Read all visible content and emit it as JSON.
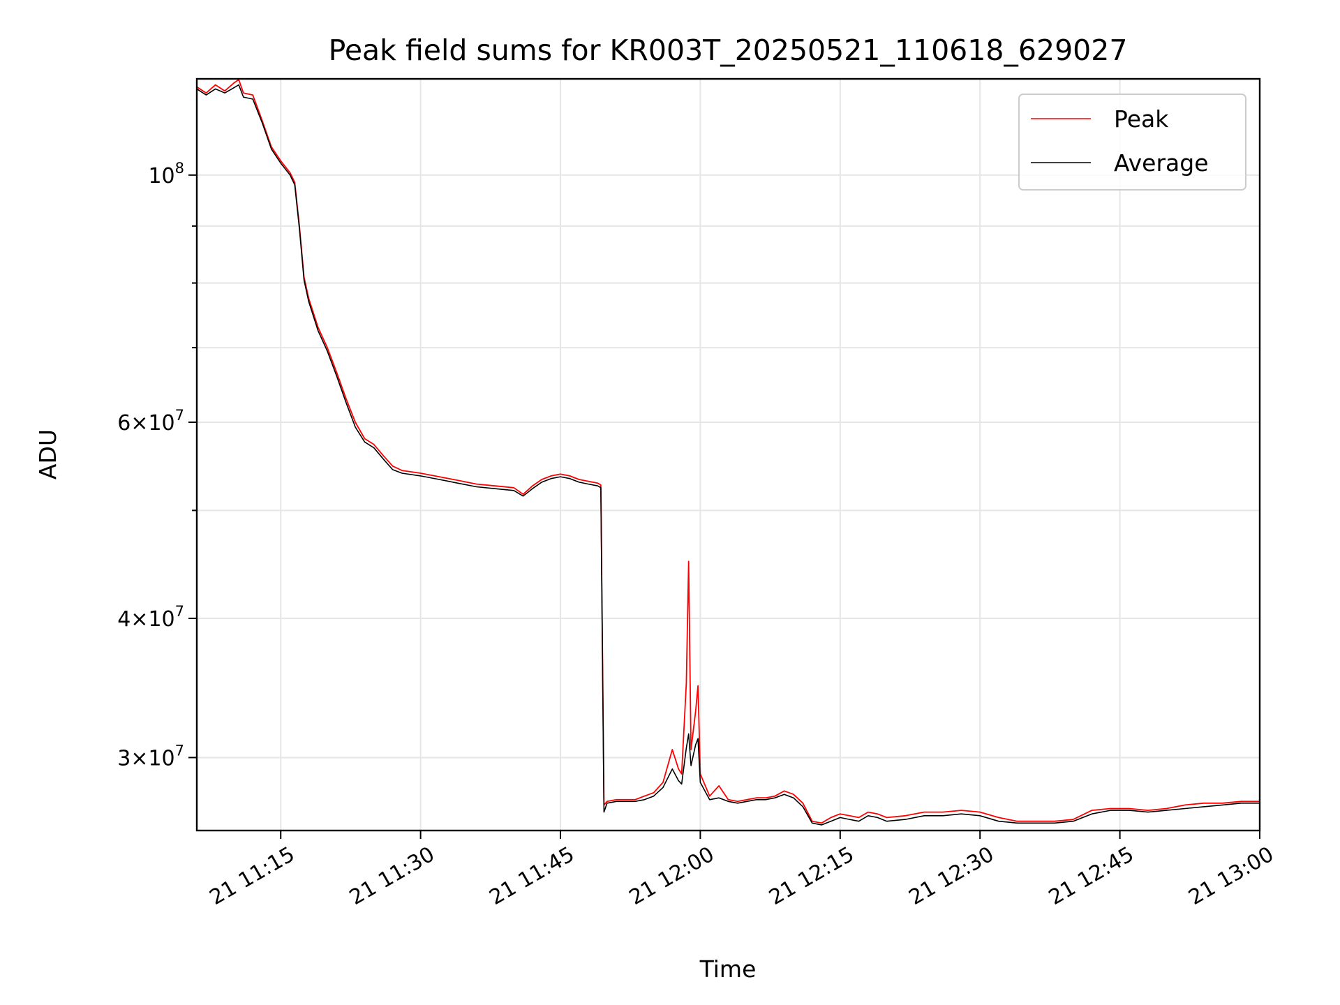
{
  "chart_data": {
    "type": "line",
    "title": "Peak field sums for KR003T_20250521_110618_629027",
    "xlabel": "Time",
    "ylabel": "ADU",
    "yscale": "log",
    "grid": true,
    "legend_position": "top-right",
    "xlim": [
      "2025-05-21 11:06",
      "2025-05-21 13:00"
    ],
    "ylim": [
      25800000,
      122000000
    ],
    "x_ticks": [
      {
        "time": "2025-05-21 11:15",
        "label": "21 11:15"
      },
      {
        "time": "2025-05-21 11:30",
        "label": "21 11:30"
      },
      {
        "time": "2025-05-21 11:45",
        "label": "21 11:45"
      },
      {
        "time": "2025-05-21 12:00",
        "label": "21 12:00"
      },
      {
        "time": "2025-05-21 12:15",
        "label": "21 12:15"
      },
      {
        "time": "2025-05-21 12:30",
        "label": "21 12:30"
      },
      {
        "time": "2025-05-21 12:45",
        "label": "21 12:45"
      },
      {
        "time": "2025-05-21 13:00",
        "label": "21 13:00"
      }
    ],
    "y_ticks": [
      {
        "value": 30000000,
        "base": "3",
        "exp": "7"
      },
      {
        "value": 40000000,
        "base": "4",
        "exp": "7"
      },
      {
        "value": 60000000,
        "base": "6",
        "exp": "7"
      },
      {
        "value": 100000000,
        "base": "",
        "exp": "8"
      }
    ],
    "y_minor_ticks": [
      50000000,
      70000000,
      80000000,
      90000000
    ],
    "series": [
      {
        "name": "Peak",
        "color": "#ff0000",
        "points": [
          [
            "2025-05-21 11:06",
            120000000
          ],
          [
            "2025-05-21 11:07",
            118500000
          ],
          [
            "2025-05-21 11:08",
            120500000
          ],
          [
            "2025-05-21 11:09",
            119000000
          ],
          [
            "2025-05-21 11:10",
            121000000
          ],
          [
            "2025-05-21 11:10:30",
            121800000
          ],
          [
            "2025-05-21 11:11",
            118500000
          ],
          [
            "2025-05-21 11:12",
            118000000
          ],
          [
            "2025-05-21 11:13",
            112000000
          ],
          [
            "2025-05-21 11:14",
            106000000
          ],
          [
            "2025-05-21 11:15",
            103000000
          ],
          [
            "2025-05-21 11:16",
            100500000
          ],
          [
            "2025-05-21 11:16:30",
            98500000
          ],
          [
            "2025-05-21 11:17",
            90000000
          ],
          [
            "2025-05-21 11:17:30",
            81000000
          ],
          [
            "2025-05-21 11:18",
            77500000
          ],
          [
            "2025-05-21 11:19",
            73000000
          ],
          [
            "2025-05-21 11:20",
            70000000
          ],
          [
            "2025-05-21 11:21",
            66500000
          ],
          [
            "2025-05-21 11:22",
            63000000
          ],
          [
            "2025-05-21 11:23",
            60000000
          ],
          [
            "2025-05-21 11:24",
            58000000
          ],
          [
            "2025-05-21 11:25",
            57300000
          ],
          [
            "2025-05-21 11:26",
            56000000
          ],
          [
            "2025-05-21 11:27",
            54800000
          ],
          [
            "2025-05-21 11:28",
            54300000
          ],
          [
            "2025-05-21 11:30",
            54000000
          ],
          [
            "2025-05-21 11:32",
            53600000
          ],
          [
            "2025-05-21 11:34",
            53200000
          ],
          [
            "2025-05-21 11:36",
            52800000
          ],
          [
            "2025-05-21 11:38",
            52600000
          ],
          [
            "2025-05-21 11:40",
            52400000
          ],
          [
            "2025-05-21 11:41",
            51700000
          ],
          [
            "2025-05-21 11:42",
            52600000
          ],
          [
            "2025-05-21 11:43",
            53300000
          ],
          [
            "2025-05-21 11:44",
            53700000
          ],
          [
            "2025-05-21 11:45",
            53900000
          ],
          [
            "2025-05-21 11:46",
            53700000
          ],
          [
            "2025-05-21 11:47",
            53300000
          ],
          [
            "2025-05-21 11:48",
            53100000
          ],
          [
            "2025-05-21 11:49",
            52900000
          ],
          [
            "2025-05-21 11:49:20",
            52700000
          ],
          [
            "2025-05-21 11:49:40",
            27200000
          ],
          [
            "2025-05-21 11:50",
            27400000
          ],
          [
            "2025-05-21 11:51",
            27500000
          ],
          [
            "2025-05-21 11:52",
            27500000
          ],
          [
            "2025-05-21 11:53",
            27500000
          ],
          [
            "2025-05-21 11:54",
            27700000
          ],
          [
            "2025-05-21 11:55",
            27900000
          ],
          [
            "2025-05-21 11:56",
            28500000
          ],
          [
            "2025-05-21 11:57",
            30500000
          ],
          [
            "2025-05-21 11:57:40",
            29300000
          ],
          [
            "2025-05-21 11:58",
            29000000
          ],
          [
            "2025-05-21 11:58:30",
            35000000
          ],
          [
            "2025-05-21 11:58:45",
            45000000
          ],
          [
            "2025-05-21 11:59",
            30500000
          ],
          [
            "2025-05-21 11:59:30",
            33000000
          ],
          [
            "2025-05-21 11:59:45",
            34800000
          ],
          [
            "2025-05-21 12:00",
            29000000
          ],
          [
            "2025-05-21 12:01",
            27700000
          ],
          [
            "2025-05-21 12:02",
            28300000
          ],
          [
            "2025-05-21 12:03",
            27500000
          ],
          [
            "2025-05-21 12:04",
            27400000
          ],
          [
            "2025-05-21 12:05",
            27500000
          ],
          [
            "2025-05-21 12:06",
            27600000
          ],
          [
            "2025-05-21 12:07",
            27600000
          ],
          [
            "2025-05-21 12:08",
            27700000
          ],
          [
            "2025-05-21 12:09",
            28000000
          ],
          [
            "2025-05-21 12:10",
            27800000
          ],
          [
            "2025-05-21 12:11",
            27300000
          ],
          [
            "2025-05-21 12:12",
            26300000
          ],
          [
            "2025-05-21 12:13",
            26200000
          ],
          [
            "2025-05-21 12:14",
            26500000
          ],
          [
            "2025-05-21 12:15",
            26700000
          ],
          [
            "2025-05-21 12:16",
            26600000
          ],
          [
            "2025-05-21 12:17",
            26500000
          ],
          [
            "2025-05-21 12:18",
            26800000
          ],
          [
            "2025-05-21 12:19",
            26700000
          ],
          [
            "2025-05-21 12:20",
            26500000
          ],
          [
            "2025-05-21 12:22",
            26600000
          ],
          [
            "2025-05-21 12:24",
            26800000
          ],
          [
            "2025-05-21 12:26",
            26800000
          ],
          [
            "2025-05-21 12:28",
            26900000
          ],
          [
            "2025-05-21 12:30",
            26800000
          ],
          [
            "2025-05-21 12:32",
            26500000
          ],
          [
            "2025-05-21 12:34",
            26300000
          ],
          [
            "2025-05-21 12:36",
            26300000
          ],
          [
            "2025-05-21 12:38",
            26300000
          ],
          [
            "2025-05-21 12:40",
            26400000
          ],
          [
            "2025-05-21 12:42",
            26900000
          ],
          [
            "2025-05-21 12:44",
            27000000
          ],
          [
            "2025-05-21 12:46",
            27000000
          ],
          [
            "2025-05-21 12:48",
            26900000
          ],
          [
            "2025-05-21 12:50",
            27000000
          ],
          [
            "2025-05-21 12:52",
            27200000
          ],
          [
            "2025-05-21 12:54",
            27300000
          ],
          [
            "2025-05-21 12:56",
            27300000
          ],
          [
            "2025-05-21 12:58",
            27400000
          ],
          [
            "2025-05-21 13:00",
            27400000
          ]
        ]
      },
      {
        "name": "Average",
        "color": "#000000",
        "points": [
          [
            "2025-05-21 11:06",
            119500000
          ],
          [
            "2025-05-21 11:07",
            118000000
          ],
          [
            "2025-05-21 11:08",
            119500000
          ],
          [
            "2025-05-21 11:09",
            118500000
          ],
          [
            "2025-05-21 11:10",
            119800000
          ],
          [
            "2025-05-21 11:10:30",
            120500000
          ],
          [
            "2025-05-21 11:11",
            117500000
          ],
          [
            "2025-05-21 11:12",
            117000000
          ],
          [
            "2025-05-21 11:13",
            111500000
          ],
          [
            "2025-05-21 11:14",
            105500000
          ],
          [
            "2025-05-21 11:15",
            102500000
          ],
          [
            "2025-05-21 11:16",
            100000000
          ],
          [
            "2025-05-21 11:16:30",
            98000000
          ],
          [
            "2025-05-21 11:17",
            89500000
          ],
          [
            "2025-05-21 11:17:30",
            80500000
          ],
          [
            "2025-05-21 11:18",
            77000000
          ],
          [
            "2025-05-21 11:19",
            72500000
          ],
          [
            "2025-05-21 11:20",
            69500000
          ],
          [
            "2025-05-21 11:21",
            66000000
          ],
          [
            "2025-05-21 11:22",
            62500000
          ],
          [
            "2025-05-21 11:23",
            59400000
          ],
          [
            "2025-05-21 11:24",
            57600000
          ],
          [
            "2025-05-21 11:25",
            56900000
          ],
          [
            "2025-05-21 11:26",
            55600000
          ],
          [
            "2025-05-21 11:27",
            54400000
          ],
          [
            "2025-05-21 11:28",
            54000000
          ],
          [
            "2025-05-21 11:30",
            53700000
          ],
          [
            "2025-05-21 11:32",
            53300000
          ],
          [
            "2025-05-21 11:34",
            52900000
          ],
          [
            "2025-05-21 11:36",
            52500000
          ],
          [
            "2025-05-21 11:38",
            52300000
          ],
          [
            "2025-05-21 11:40",
            52100000
          ],
          [
            "2025-05-21 11:41",
            51500000
          ],
          [
            "2025-05-21 11:42",
            52300000
          ],
          [
            "2025-05-21 11:43",
            53000000
          ],
          [
            "2025-05-21 11:44",
            53400000
          ],
          [
            "2025-05-21 11:45",
            53600000
          ],
          [
            "2025-05-21 11:46",
            53400000
          ],
          [
            "2025-05-21 11:47",
            53000000
          ],
          [
            "2025-05-21 11:48",
            52800000
          ],
          [
            "2025-05-21 11:49",
            52600000
          ],
          [
            "2025-05-21 11:49:20",
            52400000
          ],
          [
            "2025-05-21 11:49:40",
            26800000
          ],
          [
            "2025-05-21 11:50",
            27300000
          ],
          [
            "2025-05-21 11:51",
            27400000
          ],
          [
            "2025-05-21 11:52",
            27400000
          ],
          [
            "2025-05-21 11:53",
            27400000
          ],
          [
            "2025-05-21 11:54",
            27500000
          ],
          [
            "2025-05-21 11:55",
            27700000
          ],
          [
            "2025-05-21 11:56",
            28200000
          ],
          [
            "2025-05-21 11:57",
            29300000
          ],
          [
            "2025-05-21 11:57:40",
            28600000
          ],
          [
            "2025-05-21 11:58",
            28400000
          ],
          [
            "2025-05-21 11:58:30",
            30600000
          ],
          [
            "2025-05-21 11:58:45",
            31500000
          ],
          [
            "2025-05-21 11:59",
            29500000
          ],
          [
            "2025-05-21 11:59:30",
            30800000
          ],
          [
            "2025-05-21 11:59:45",
            31200000
          ],
          [
            "2025-05-21 12:00",
            28500000
          ],
          [
            "2025-05-21 12:01",
            27500000
          ],
          [
            "2025-05-21 12:02",
            27600000
          ],
          [
            "2025-05-21 12:03",
            27400000
          ],
          [
            "2025-05-21 12:04",
            27300000
          ],
          [
            "2025-05-21 12:05",
            27400000
          ],
          [
            "2025-05-21 12:06",
            27500000
          ],
          [
            "2025-05-21 12:07",
            27500000
          ],
          [
            "2025-05-21 12:08",
            27600000
          ],
          [
            "2025-05-21 12:09",
            27800000
          ],
          [
            "2025-05-21 12:10",
            27600000
          ],
          [
            "2025-05-21 12:11",
            27100000
          ],
          [
            "2025-05-21 12:12",
            26200000
          ],
          [
            "2025-05-21 12:13",
            26100000
          ],
          [
            "2025-05-21 12:14",
            26300000
          ],
          [
            "2025-05-21 12:15",
            26500000
          ],
          [
            "2025-05-21 12:16",
            26400000
          ],
          [
            "2025-05-21 12:17",
            26300000
          ],
          [
            "2025-05-21 12:18",
            26600000
          ],
          [
            "2025-05-21 12:19",
            26500000
          ],
          [
            "2025-05-21 12:20",
            26300000
          ],
          [
            "2025-05-21 12:22",
            26400000
          ],
          [
            "2025-05-21 12:24",
            26600000
          ],
          [
            "2025-05-21 12:26",
            26600000
          ],
          [
            "2025-05-21 12:28",
            26700000
          ],
          [
            "2025-05-21 12:30",
            26600000
          ],
          [
            "2025-05-21 12:32",
            26300000
          ],
          [
            "2025-05-21 12:34",
            26200000
          ],
          [
            "2025-05-21 12:36",
            26200000
          ],
          [
            "2025-05-21 12:38",
            26200000
          ],
          [
            "2025-05-21 12:40",
            26300000
          ],
          [
            "2025-05-21 12:42",
            26700000
          ],
          [
            "2025-05-21 12:44",
            26900000
          ],
          [
            "2025-05-21 12:46",
            26900000
          ],
          [
            "2025-05-21 12:48",
            26800000
          ],
          [
            "2025-05-21 12:50",
            26900000
          ],
          [
            "2025-05-21 12:52",
            27000000
          ],
          [
            "2025-05-21 12:54",
            27100000
          ],
          [
            "2025-05-21 12:56",
            27200000
          ],
          [
            "2025-05-21 12:58",
            27300000
          ],
          [
            "2025-05-21 13:00",
            27300000
          ]
        ]
      }
    ]
  }
}
